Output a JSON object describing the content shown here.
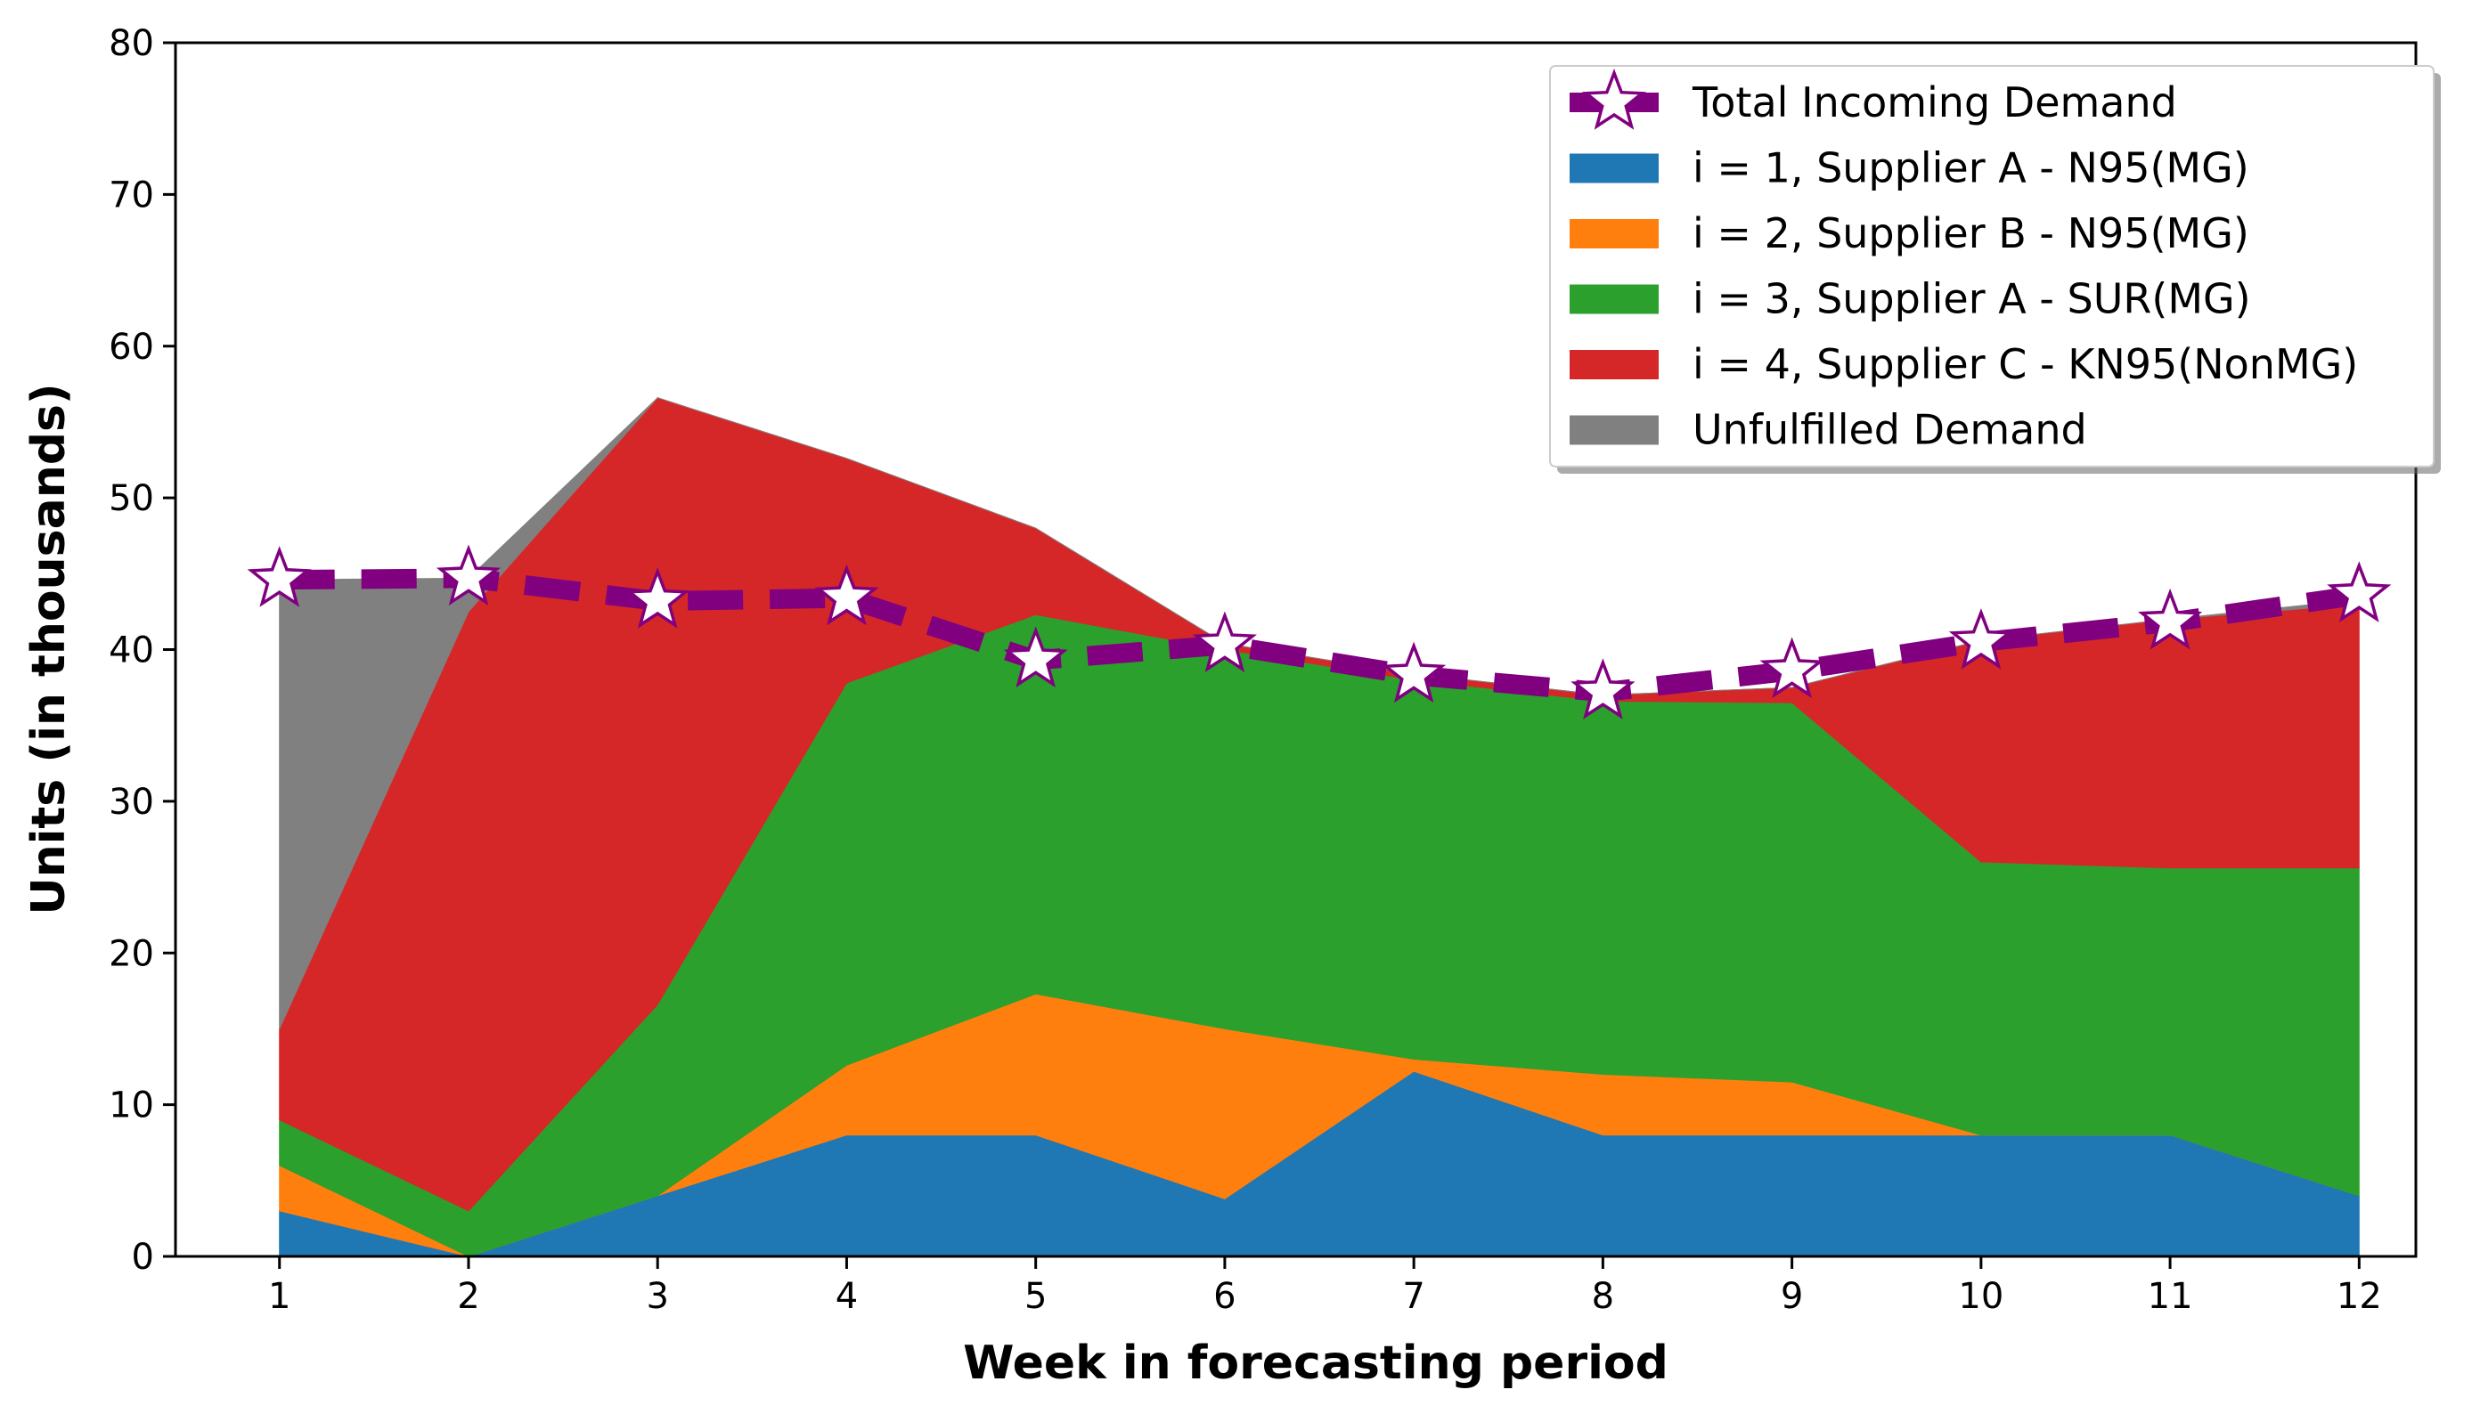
{
  "chart_data": {
    "type": "area",
    "stacked": true,
    "title": "",
    "xlabel": "Week in forecasting period",
    "ylabel": "Units (in thousands)",
    "x": [
      1,
      2,
      3,
      4,
      5,
      6,
      7,
      8,
      9,
      10,
      11,
      12
    ],
    "xlim": [
      0.45,
      12.3
    ],
    "ylim": [
      0,
      80
    ],
    "yticks": [
      0,
      10,
      20,
      30,
      40,
      50,
      60,
      70,
      80
    ],
    "grid": false,
    "legend_position": "top-right",
    "series": [
      {
        "name": "i = 1, Supplier A - N95(MG)",
        "color": "#1f77b4",
        "values": [
          3,
          0,
          4,
          8,
          8,
          3.8,
          12.2,
          8,
          8,
          8,
          8,
          4
        ]
      },
      {
        "name": "i = 2, Supplier B - N95(MG)",
        "color": "#ff7f0e",
        "values": [
          3,
          0,
          0,
          4.6,
          9.3,
          11.2,
          0.8,
          4,
          3.5,
          0,
          0,
          0
        ]
      },
      {
        "name": "i = 3, Supplier A - SUR(MG)",
        "color": "#2ca02c",
        "values": [
          3,
          3,
          12.6,
          25.2,
          25,
          25,
          25,
          24.6,
          25,
          18,
          17.6,
          21.6
        ]
      },
      {
        "name": "i = 4, Supplier C - KN95(NonMG)",
        "color": "#d62728",
        "values": [
          6,
          39.5,
          40,
          14.8,
          5.7,
          0.4,
          0.4,
          0.4,
          1,
          14.6,
          16.4,
          17.4
        ]
      },
      {
        "name": "Unfulfilled Demand",
        "color": "#808080",
        "values": [
          29.6,
          2.2,
          0,
          0,
          0,
          0,
          0,
          0,
          0,
          0,
          0,
          0.3
        ]
      }
    ],
    "line": {
      "name": "Total Incoming Demand",
      "color": "#800080",
      "marker": "star",
      "values": [
        44.6,
        44.7,
        43.2,
        43.4,
        39.3,
        40.3,
        38.3,
        37.2,
        38.6,
        40.5,
        41.8,
        43.6
      ]
    }
  }
}
